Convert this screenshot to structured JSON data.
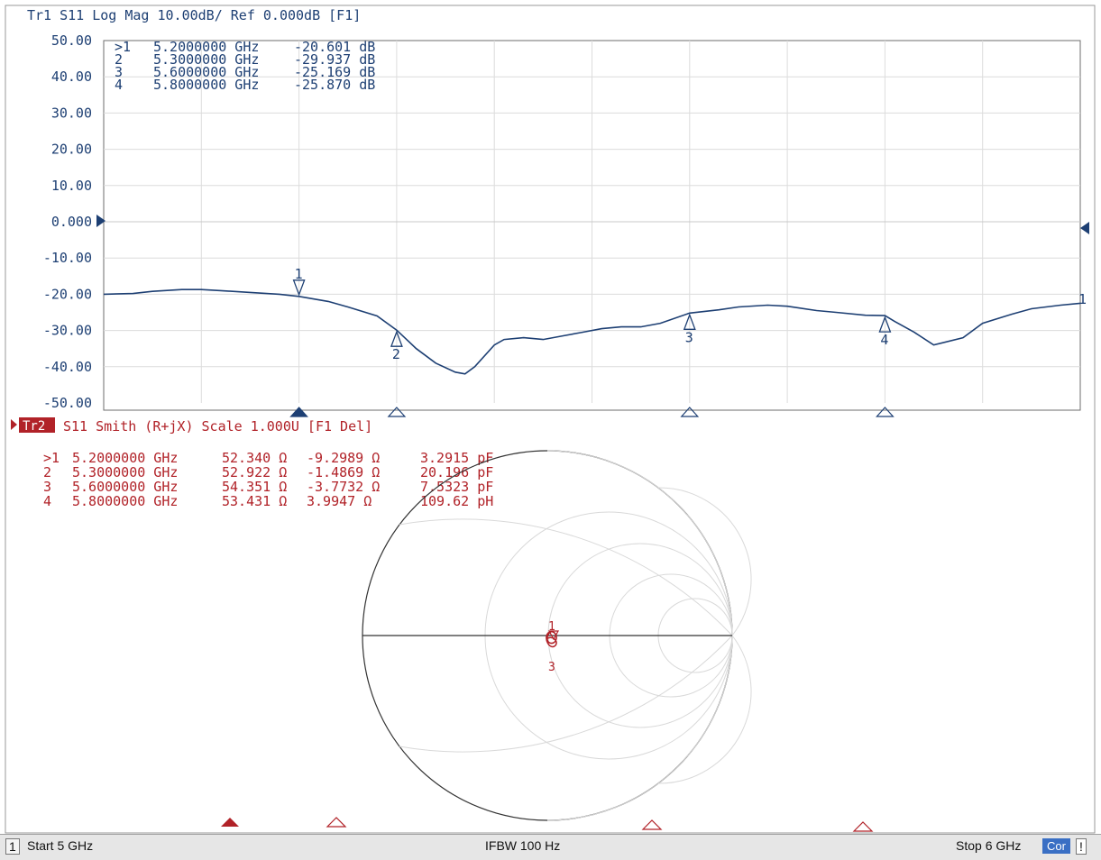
{
  "trace1": {
    "header": "Tr1 S11 Log Mag 10.00dB/ Ref 0.000dB [F1]",
    "y_ticks": [
      "50.00",
      "40.00",
      "30.00",
      "20.00",
      "10.00",
      "0.000",
      "-10.00",
      "-20.00",
      "-30.00",
      "-40.00",
      "-50.00"
    ],
    "markers": [
      {
        "num": ">1",
        "freq": "5.2000000 GHz",
        "val": "-20.601 dB"
      },
      {
        "num": "2",
        "freq": "5.3000000 GHz",
        "val": "-29.937 dB"
      },
      {
        "num": "3",
        "freq": "5.6000000 GHz",
        "val": "-25.169 dB"
      },
      {
        "num": "4",
        "freq": "5.8000000 GHz",
        "val": "-25.870 dB"
      }
    ],
    "marker_flags": [
      "1",
      "2",
      "3",
      "4"
    ],
    "trace_end_label": "1",
    "color": "#1d3f73"
  },
  "trace2": {
    "badge": "Tr2",
    "header": "S11 Smith (R+jX) Scale 1.000U [F1 Del]",
    "markers": [
      {
        "num": ">1",
        "freq": "5.2000000 GHz",
        "r": "52.340 Ω",
        "x": "-9.2989 Ω",
        "e": "3.2915 pF"
      },
      {
        "num": "2",
        "freq": "5.3000000 GHz",
        "r": "52.922 Ω",
        "x": "-1.4869 Ω",
        "e": "20.196 pF"
      },
      {
        "num": "3",
        "freq": "5.6000000 GHz",
        "r": "54.351 Ω",
        "x": "-3.7732 Ω",
        "e": "7.5323 pF"
      },
      {
        "num": "4",
        "freq": "5.8000000 GHz",
        "r": "53.431 Ω",
        "x": "3.9947 Ω",
        "e": "109.62 pH"
      }
    ],
    "smith_labels": [
      "1",
      "3"
    ],
    "color": "#b12228"
  },
  "chart_data": {
    "type": "line",
    "title": "Tr1 S11 Log Mag 10.00dB/ Ref 0.000dB [F1]",
    "xlabel": "",
    "ylabel": "",
    "xlim": [
      5.0,
      6.0
    ],
    "ylim": [
      -50,
      50
    ],
    "grid": true,
    "series": [
      {
        "x": [
          5.0,
          5.03,
          5.05,
          5.08,
          5.1,
          5.12,
          5.15,
          5.18,
          5.2,
          5.23,
          5.25,
          5.28,
          5.3,
          5.32,
          5.34,
          5.36,
          5.37,
          5.38,
          5.4,
          5.41,
          5.43,
          5.45,
          5.47,
          5.49,
          5.51,
          5.53,
          5.55,
          5.57,
          5.6,
          5.63,
          5.65,
          5.68,
          5.7,
          5.73,
          5.75,
          5.78,
          5.8,
          5.81,
          5.83,
          5.85,
          5.88,
          5.9,
          5.93,
          5.95,
          5.98,
          6.0
        ],
        "y": [
          -20.0,
          -19.8,
          -19.2,
          -18.7,
          -18.7,
          -19.0,
          -19.5,
          -20.0,
          -20.6,
          -22.0,
          -23.5,
          -26.0,
          -29.9,
          -35.0,
          -39.0,
          -41.5,
          -42.0,
          -40.0,
          -34.0,
          -32.5,
          -32.0,
          -32.5,
          -31.5,
          -30.5,
          -29.5,
          -29.0,
          -29.0,
          -28.0,
          -25.2,
          -24.3,
          -23.5,
          -23.0,
          -23.3,
          -24.5,
          -25.0,
          -25.8,
          -25.9,
          -27.5,
          -30.5,
          -34.0,
          -32.0,
          -28.0,
          -25.5,
          -24.0,
          -23.0,
          -22.5
        ]
      }
    ]
  },
  "status": {
    "channel": "1",
    "start": "Start 5 GHz",
    "ifbw": "IFBW 100 Hz",
    "stop": "Stop 6 GHz",
    "cor": "Cor",
    "warn": "!"
  }
}
